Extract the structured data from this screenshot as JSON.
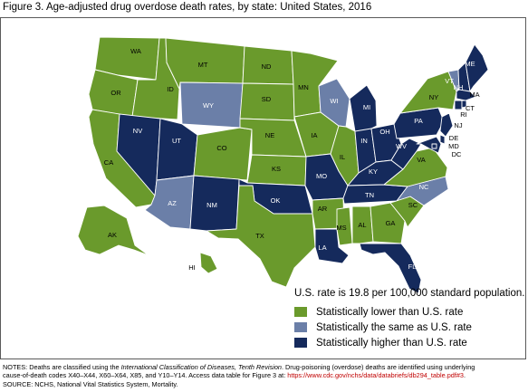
{
  "title": "Figure 3. Age-adjusted drug overdose death rates, by state: United States, 2016",
  "legend": {
    "note": "U.S. rate is 19.8 per 100,000 standard population.",
    "items": [
      {
        "key": "lower",
        "label": "Statistically lower than U.S. rate",
        "color": "#6a9a2c"
      },
      {
        "key": "same",
        "label": "Statistically the same as U.S. rate",
        "color": "#6b7fa8"
      },
      {
        "key": "higher",
        "label": "Statistically higher than U.S. rate",
        "color": "#152a5c"
      }
    ]
  },
  "states": {
    "WA": "lower",
    "OR": "lower",
    "CA": "lower",
    "ID": "lower",
    "MT": "lower",
    "WY": "same",
    "NV": "higher",
    "UT": "higher",
    "AZ": "same",
    "CO": "lower",
    "NM": "higher",
    "ND": "lower",
    "SD": "lower",
    "NE": "lower",
    "KS": "lower",
    "OK": "higher",
    "TX": "lower",
    "MN": "lower",
    "IA": "lower",
    "MO": "higher",
    "AR": "lower",
    "LA": "higher",
    "WI": "same",
    "IL": "lower",
    "MI": "higher",
    "IN": "higher",
    "OH": "higher",
    "KY": "higher",
    "TN": "higher",
    "MS": "lower",
    "AL": "lower",
    "GA": "lower",
    "FL": "higher",
    "SC": "lower",
    "NC": "same",
    "VA": "lower",
    "WV": "higher",
    "PA": "higher",
    "NY": "lower",
    "VT": "same",
    "NH": "higher",
    "ME": "higher",
    "MA": "higher",
    "RI": "higher",
    "CT": "higher",
    "NJ": "higher",
    "DE": "higher",
    "MD": "higher",
    "DC": "higher",
    "AK": "lower",
    "HI": "lower"
  },
  "notes": {
    "line1_pre": "NOTES: Deaths are classified using the ",
    "line1_italic": "International Classification of Diseases, Tenth Revision",
    "line1_post": ". Drug-poisoning (overdose) deaths are identified using underlying",
    "line2_pre": "cause-of-death codes X40–X44, X60–X64, X85, and Y10–Y14. Access data table for Figure 3 at: ",
    "line2_link": "https://www.cdc.gov/nchs/data/databriefs/db294_table.pdf#3",
    "line2_post": ".",
    "line3": "SOURCE: NCHS, National Vital Statistics System, Mortality."
  }
}
